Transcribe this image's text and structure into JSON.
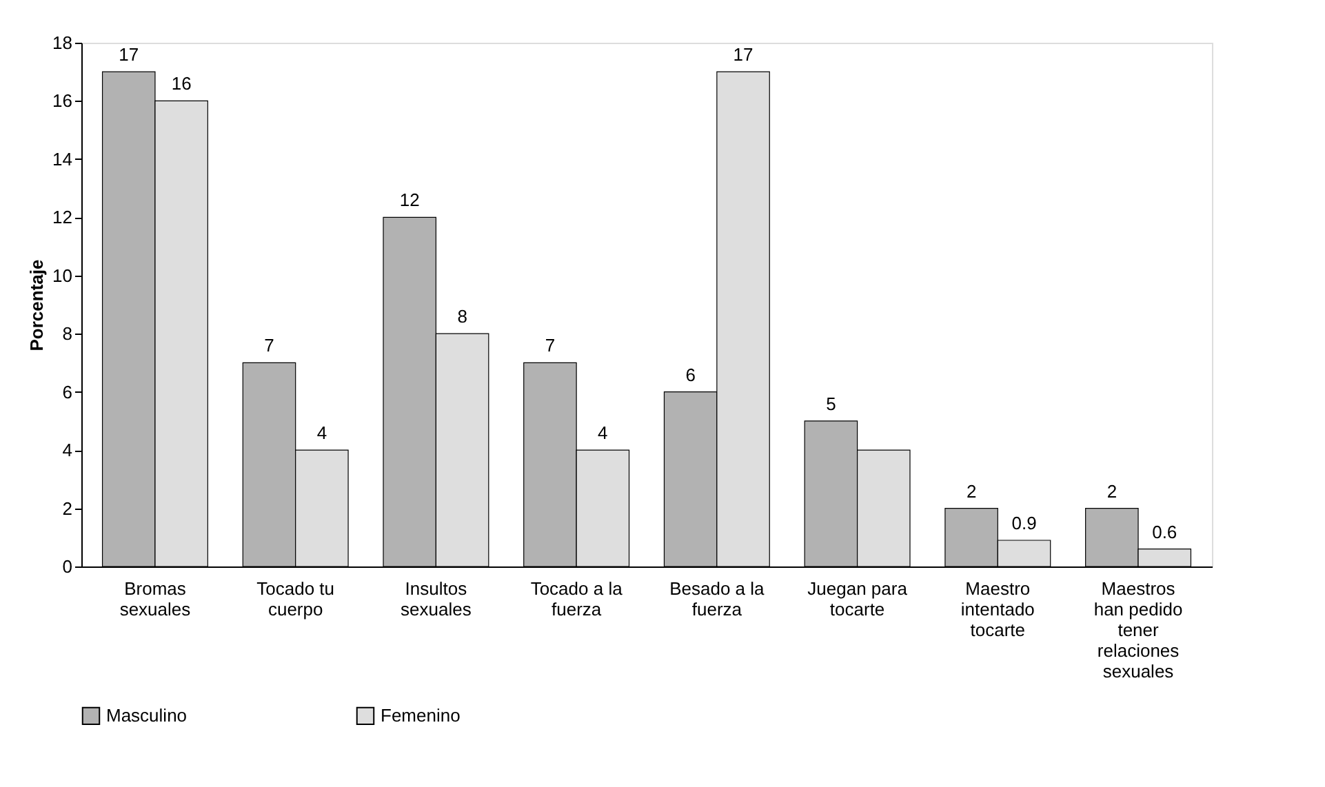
{
  "chart_data": {
    "type": "bar",
    "ylabel": "Porcentaje",
    "categories": [
      "Bromas\nsexuales",
      "Tocado tu\ncuerpo",
      "Insultos\nsexuales",
      "Tocado a la\nfuerza",
      "Besado a la\nfuerza",
      "Juegan para\ntocarte",
      "Maestro\nintentado\ntocarte",
      "Maestros\nhan pedido\ntener\nrelaciones\nsexuales"
    ],
    "series": [
      {
        "name": "Masculino",
        "color": "#b2b2b2",
        "values": [
          17,
          7,
          12,
          7,
          6,
          5,
          2,
          2
        ],
        "value_labels": [
          "17",
          "7",
          "12",
          "7",
          "6",
          "5",
          "2",
          "2"
        ]
      },
      {
        "name": "Femenino",
        "color": "#dedede",
        "values": [
          16,
          4,
          8,
          4,
          17,
          4,
          0.9,
          0.6
        ],
        "value_labels": [
          "16",
          "4",
          "8",
          "4",
          "17",
          null,
          "0.9",
          "0.6"
        ]
      }
    ],
    "ylim": [
      0,
      18
    ],
    "yticks": [
      0,
      2,
      4,
      6,
      8,
      10,
      12,
      14,
      16,
      18
    ],
    "grid": false,
    "legend": "bottom"
  }
}
